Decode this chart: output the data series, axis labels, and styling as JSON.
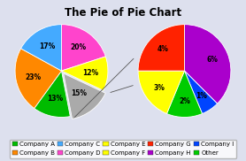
{
  "title": "The Pie of Pie Chart",
  "main_vals": [
    20,
    12,
    15,
    13,
    23,
    17
  ],
  "main_colors": [
    "#ff44cc",
    "#ffff00",
    "#aaaaaa",
    "#00bb00",
    "#ff8800",
    "#44aaff"
  ],
  "main_pcts": [
    "20%",
    "12%",
    "15%",
    "13%",
    "23%",
    "17%"
  ],
  "main_explode": [
    0,
    0,
    0.07,
    0,
    0,
    0
  ],
  "main_startangle": 90,
  "sub_vals": [
    6,
    1,
    2,
    3,
    4
  ],
  "sub_colors": [
    "#aa00cc",
    "#0044ff",
    "#00cc00",
    "#ffff00",
    "#ff2200"
  ],
  "sub_pcts": [
    "6%",
    "1%",
    "2%",
    "3%",
    "4%"
  ],
  "sub_startangle": 90,
  "legend_entries": [
    {
      "label": "Company A",
      "color": "#00bb00"
    },
    {
      "label": "Company B",
      "color": "#ff8800"
    },
    {
      "label": "Company C",
      "color": "#44aaff"
    },
    {
      "label": "Company D",
      "color": "#ff44cc"
    },
    {
      "label": "Company E",
      "color": "#ffff00"
    },
    {
      "label": "Company F",
      "color": "#ffff00"
    },
    {
      "label": "Company G",
      "color": "#ff2200"
    },
    {
      "label": "Company H",
      "color": "#aa00cc"
    },
    {
      "label": "Company I",
      "color": "#0044ff"
    },
    {
      "label": "Other",
      "color": "#00cc00"
    }
  ],
  "bg_color": "#dde0ee",
  "title_fontsize": 8.5,
  "pct_fontsize": 5.5,
  "legend_fontsize": 5.0
}
